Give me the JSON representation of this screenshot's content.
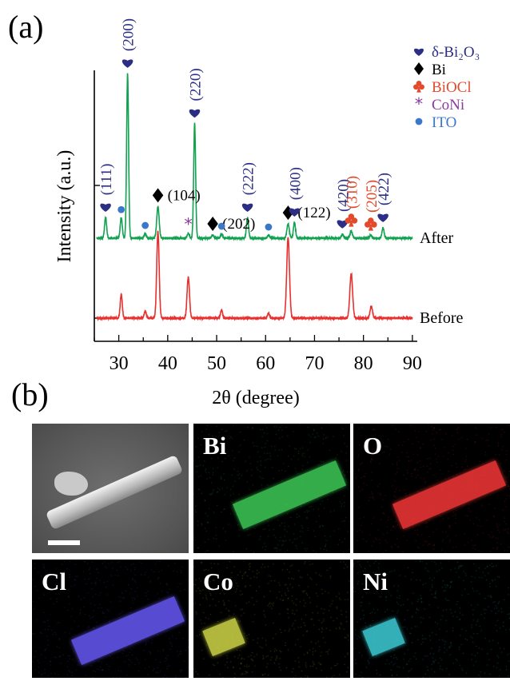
{
  "panel_a_label": "(a)",
  "panel_b_label": "(b)",
  "chart_data": {
    "type": "line",
    "title": "",
    "xlabel": "2θ (degree)",
    "ylabel": "Intensity (a.u.)",
    "xlim": [
      25,
      91
    ],
    "x_ticks": [
      "30",
      "40",
      "50",
      "60",
      "70",
      "80",
      "90"
    ],
    "grid": false,
    "legend": {
      "position": "top-right",
      "entries": [
        {
          "symbol": "heart",
          "label": "δ-Bi₂O₃",
          "color": "#2b2e84"
        },
        {
          "symbol": "diamond",
          "label": "Bi",
          "color": "#000000"
        },
        {
          "symbol": "club",
          "label": "BiOCl",
          "color": "#e24a2b"
        },
        {
          "symbol": "asterisk",
          "label": "CoNi",
          "color": "#8a3c9b"
        },
        {
          "symbol": "dot",
          "label": "ITO",
          "color": "#3c78c8"
        }
      ]
    },
    "series": [
      {
        "name": "After",
        "color": "#12a150",
        "peaks": [
          {
            "x": 27.3,
            "h": 0.26,
            "w": 0.3
          },
          {
            "x": 30.5,
            "h": 0.26,
            "w": 0.3
          },
          {
            "x": 31.8,
            "h": 2.08,
            "w": 0.28
          },
          {
            "x": 35.4,
            "h": 0.06,
            "w": 0.3
          },
          {
            "x": 38.0,
            "h": 0.4,
            "w": 0.35
          },
          {
            "x": 44.2,
            "h": 0.06,
            "w": 0.3
          },
          {
            "x": 45.5,
            "h": 1.45,
            "w": 0.28
          },
          {
            "x": 49.2,
            "h": 0.04,
            "w": 0.3
          },
          {
            "x": 51.0,
            "h": 0.05,
            "w": 0.3
          },
          {
            "x": 56.3,
            "h": 0.26,
            "w": 0.3
          },
          {
            "x": 60.6,
            "h": 0.04,
            "w": 0.3
          },
          {
            "x": 64.6,
            "h": 0.18,
            "w": 0.35
          },
          {
            "x": 65.9,
            "h": 0.2,
            "w": 0.3
          },
          {
            "x": 75.7,
            "h": 0.05,
            "w": 0.3
          },
          {
            "x": 77.5,
            "h": 0.09,
            "w": 0.35
          },
          {
            "x": 81.5,
            "h": 0.04,
            "w": 0.3
          },
          {
            "x": 84.0,
            "h": 0.13,
            "w": 0.3
          }
        ]
      },
      {
        "name": "Before",
        "color": "#e8312f",
        "peaks": [
          {
            "x": 30.5,
            "h": 0.3,
            "w": 0.3
          },
          {
            "x": 35.4,
            "h": 0.09,
            "w": 0.3
          },
          {
            "x": 38.0,
            "h": 1.1,
            "w": 0.35
          },
          {
            "x": 44.2,
            "h": 0.52,
            "w": 0.35
          },
          {
            "x": 51.0,
            "h": 0.1,
            "w": 0.3
          },
          {
            "x": 60.6,
            "h": 0.06,
            "w": 0.3
          },
          {
            "x": 64.6,
            "h": 1.02,
            "w": 0.4
          },
          {
            "x": 77.5,
            "h": 0.56,
            "w": 0.4
          },
          {
            "x": 81.6,
            "h": 0.15,
            "w": 0.35
          }
        ]
      }
    ],
    "annotations": [
      {
        "text": "(111)",
        "symbol": "heart",
        "color": "#2b2e84",
        "x": 27.3,
        "series": "After"
      },
      {
        "text": "(200)",
        "symbol": "heart",
        "color": "#2b2e84",
        "x": 31.8,
        "series": "After"
      },
      {
        "text": "(220)",
        "symbol": "heart",
        "color": "#2b2e84",
        "x": 45.5,
        "series": "After"
      },
      {
        "text": "(104)",
        "symbol": "diamond",
        "color": "#000000",
        "x": 38.0,
        "series": "After"
      },
      {
        "text": "(202)",
        "symbol": "diamond",
        "color": "#000000",
        "x": 49.2,
        "series": "After"
      },
      {
        "text": "(222)",
        "symbol": "heart",
        "color": "#2b2e84",
        "x": 56.3,
        "series": "After"
      },
      {
        "text": "(122)",
        "symbol": "diamond",
        "color": "#000000",
        "x": 64.6,
        "series": "After"
      },
      {
        "text": "(400)",
        "symbol": "heart",
        "color": "#2b2e84",
        "x": 65.9,
        "series": "After"
      },
      {
        "text": "(420)",
        "symbol": "heart",
        "color": "#2b2e84",
        "x": 75.7,
        "series": "After"
      },
      {
        "text": "(310)",
        "symbol": "club",
        "color": "#e24a2b",
        "x": 77.5,
        "series": "After"
      },
      {
        "text": "(205)",
        "symbol": "club",
        "color": "#e24a2b",
        "x": 81.5,
        "series": "After"
      },
      {
        "text": "(422)",
        "symbol": "heart",
        "color": "#2b2e84",
        "x": 84.0,
        "series": "After"
      },
      {
        "symbol": "dot",
        "color": "#3c78c8",
        "x": 30.5,
        "series": "After"
      },
      {
        "symbol": "dot",
        "color": "#3c78c8",
        "x": 35.4,
        "series": "After"
      },
      {
        "symbol": "asterisk",
        "color": "#8a3c9b",
        "x": 44.2,
        "series": "After"
      },
      {
        "symbol": "dot",
        "color": "#3c78c8",
        "x": 51.0,
        "series": "After"
      },
      {
        "symbol": "dot",
        "color": "#3c78c8",
        "x": 60.6,
        "series": "After"
      }
    ]
  },
  "eds_maps": [
    {
      "label": "",
      "kind": "sem",
      "color": "#cfcfcf"
    },
    {
      "label": "Bi",
      "kind": "map",
      "color": "#3fd25a"
    },
    {
      "label": "O",
      "kind": "map",
      "color": "#ff3a3a"
    },
    {
      "label": "Cl",
      "kind": "map",
      "color": "#6a5cff"
    },
    {
      "label": "Co",
      "kind": "map",
      "color": "#d8e04a"
    },
    {
      "label": "Ni",
      "kind": "map",
      "color": "#40d6e0"
    }
  ]
}
